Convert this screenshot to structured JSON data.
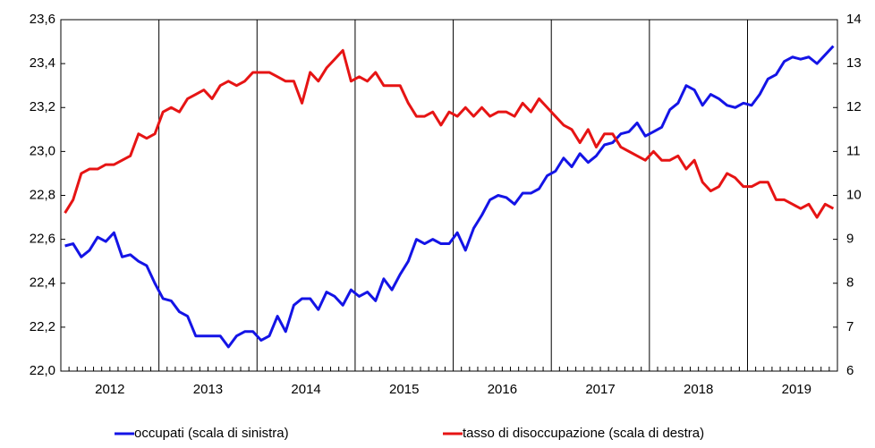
{
  "chart_data": {
    "type": "line",
    "categories": [
      null,
      null,
      null,
      null,
      null,
      "2012",
      null,
      null,
      null,
      null,
      null,
      null,
      null,
      null,
      null,
      null,
      null,
      "2013",
      null,
      null,
      null,
      null,
      null,
      null,
      null,
      null,
      null,
      null,
      null,
      "2014",
      null,
      null,
      null,
      null,
      null,
      null,
      null,
      null,
      null,
      null,
      null,
      "2015",
      null,
      null,
      null,
      null,
      null,
      null,
      null,
      null,
      null,
      null,
      null,
      "2016",
      null,
      null,
      null,
      null,
      null,
      null,
      null,
      null,
      null,
      null,
      null,
      "2017",
      null,
      null,
      null,
      null,
      null,
      null,
      null,
      null,
      null,
      null,
      null,
      "2018",
      null,
      null,
      null,
      null,
      null,
      null,
      null,
      null,
      null,
      null,
      null,
      "2019",
      null,
      null,
      null,
      null,
      null
    ],
    "series": [
      {
        "name": "occupati (scala di sinistra)",
        "color": "#1414e6",
        "axis": "y",
        "values": [
          22.57,
          22.58,
          22.52,
          22.55,
          22.61,
          22.59,
          22.63,
          22.52,
          22.53,
          22.5,
          22.48,
          22.4,
          22.33,
          22.32,
          22.27,
          22.25,
          22.16,
          22.16,
          22.16,
          22.16,
          22.11,
          22.16,
          22.18,
          22.18,
          22.14,
          22.16,
          22.25,
          22.18,
          22.3,
          22.33,
          22.33,
          22.28,
          22.36,
          22.34,
          22.3,
          22.37,
          22.34,
          22.36,
          22.32,
          22.42,
          22.37,
          22.44,
          22.5,
          22.6,
          22.58,
          22.6,
          22.58,
          22.58,
          22.63,
          22.55,
          22.65,
          22.71,
          22.78,
          22.8,
          22.79,
          22.76,
          22.81,
          22.81,
          22.83,
          22.89,
          22.91,
          22.97,
          22.93,
          22.99,
          22.95,
          22.98,
          23.03,
          23.04,
          23.08,
          23.09,
          23.13,
          23.07,
          23.09,
          23.11,
          23.19,
          23.22,
          23.3,
          23.28,
          23.21,
          23.26,
          23.24,
          23.21,
          23.2,
          23.22,
          23.21,
          23.26,
          23.33,
          23.35,
          23.41,
          23.43,
          23.42,
          23.43,
          23.4,
          23.44,
          23.48
        ]
      },
      {
        "name": "tasso di disoccupazione (scala di destra)",
        "color": "#e61414",
        "axis": "y2",
        "values": [
          9.6,
          9.9,
          10.5,
          10.6,
          10.6,
          10.7,
          10.7,
          10.8,
          10.9,
          11.4,
          11.3,
          11.4,
          11.9,
          12.0,
          11.9,
          12.2,
          12.3,
          12.4,
          12.2,
          12.5,
          12.6,
          12.5,
          12.6,
          12.8,
          12.8,
          12.8,
          12.7,
          12.6,
          12.6,
          12.1,
          12.8,
          12.6,
          12.9,
          13.1,
          13.3,
          12.6,
          12.7,
          12.6,
          12.8,
          12.5,
          12.5,
          12.5,
          12.1,
          11.8,
          11.8,
          11.9,
          11.6,
          11.9,
          11.8,
          12.0,
          11.8,
          12.0,
          11.8,
          11.9,
          11.9,
          11.8,
          12.1,
          11.9,
          12.2,
          12.0,
          11.8,
          11.6,
          11.5,
          11.2,
          11.5,
          11.1,
          11.4,
          11.4,
          11.1,
          11.0,
          10.9,
          10.8,
          11.0,
          10.8,
          10.8,
          10.9,
          10.6,
          10.8,
          10.3,
          10.1,
          10.2,
          10.5,
          10.4,
          10.2,
          10.2,
          10.3,
          10.3,
          9.9,
          9.9,
          9.8,
          9.7,
          9.8,
          9.5,
          9.8,
          9.7
        ]
      }
    ],
    "ylim": [
      22.0,
      23.6
    ],
    "yticks": [
      {
        "value": 22.0,
        "label": "22,0"
      },
      {
        "value": 22.2,
        "label": "22,2"
      },
      {
        "value": 22.4,
        "label": "22,4"
      },
      {
        "value": 22.6,
        "label": "22,6"
      },
      {
        "value": 22.8,
        "label": "22,8"
      },
      {
        "value": 23.0,
        "label": "23,0"
      },
      {
        "value": 23.2,
        "label": "23,2"
      },
      {
        "value": 23.4,
        "label": "23,4"
      },
      {
        "value": 23.6,
        "label": "23,6"
      }
    ],
    "y2lim": [
      6,
      14
    ],
    "y2ticks": [
      6,
      7,
      8,
      9,
      10,
      11,
      12,
      13,
      14
    ],
    "legend": "bottom"
  }
}
